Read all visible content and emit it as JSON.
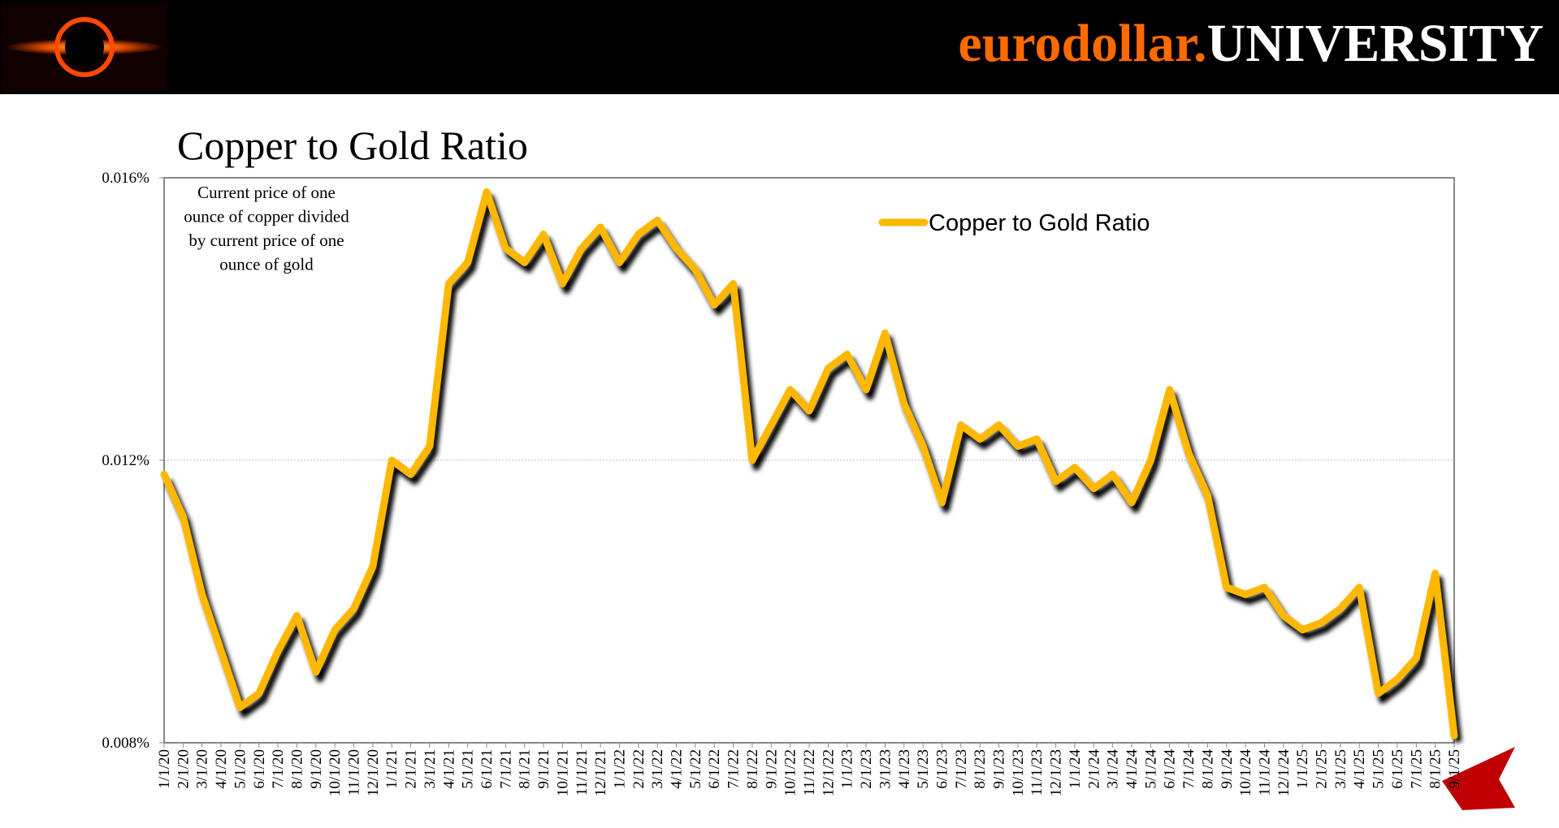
{
  "header": {
    "brand_left": "eurodollar.",
    "brand_right": "UNIVERSITY"
  },
  "chart_data": {
    "type": "line",
    "title": "Copper to Gold Ratio",
    "annotation": [
      "Current price of one",
      "ounce of copper divided",
      "by current price of one",
      "ounce of gold"
    ],
    "categories": [
      "1/1/20",
      "2/1/20",
      "3/1/20",
      "4/1/20",
      "5/1/20",
      "6/1/20",
      "7/1/20",
      "8/1/20",
      "9/1/20",
      "10/1/20",
      "11/1/20",
      "12/1/20",
      "1/1/21",
      "2/1/21",
      "3/1/21",
      "4/1/21",
      "5/1/21",
      "6/1/21",
      "7/1/21",
      "8/1/21",
      "9/1/21",
      "10/1/21",
      "11/1/21",
      "12/1/21",
      "1/1/22",
      "2/1/22",
      "3/1/22",
      "4/1/22",
      "5/1/22",
      "6/1/22",
      "7/1/22",
      "8/1/22",
      "9/1/22",
      "10/1/22",
      "11/1/22",
      "12/1/22",
      "1/1/23",
      "2/1/23",
      "3/1/23",
      "4/1/23",
      "5/1/23",
      "6/1/23",
      "7/1/23",
      "8/1/23",
      "9/1/23",
      "10/1/23",
      "11/1/23",
      "12/1/23",
      "1/1/24",
      "2/1/24",
      "3/1/24",
      "4/1/24",
      "5/1/24",
      "6/1/24",
      "7/1/24",
      "8/1/24",
      "9/1/24",
      "10/1/24",
      "11/1/24",
      "12/1/24",
      "1/1/25",
      "2/1/25",
      "3/1/25",
      "4/1/25",
      "5/1/25",
      "6/1/25",
      "7/1/25",
      "8/1/25",
      "9/1/25"
    ],
    "series": [
      {
        "name": "Copper to Gold Ratio",
        "color": "#ffb800",
        "values": [
          0.0118,
          0.0112,
          0.0101,
          0.0093,
          0.0085,
          0.0087,
          0.0093,
          0.0098,
          0.009,
          0.0096,
          0.0099,
          0.0105,
          0.012,
          0.0118,
          0.0122,
          0.0145,
          0.0148,
          0.0158,
          0.015,
          0.0148,
          0.0152,
          0.0145,
          0.015,
          0.0153,
          0.0148,
          0.0152,
          0.0154,
          0.015,
          0.0147,
          0.0142,
          0.0145,
          0.012,
          0.0125,
          0.013,
          0.0127,
          0.0133,
          0.0135,
          0.013,
          0.0138,
          0.0128,
          0.0122,
          0.0114,
          0.0125,
          0.0123,
          0.0125,
          0.0122,
          0.0123,
          0.0117,
          0.0119,
          0.0116,
          0.0118,
          0.0114,
          0.012,
          0.013,
          0.0121,
          0.0115,
          0.0102,
          0.0101,
          0.0102,
          0.0098,
          0.0096,
          0.0097,
          0.0099,
          0.0102,
          0.0087,
          0.0089,
          0.0092,
          0.0104,
          0.0081
        ]
      }
    ],
    "ylim": [
      0.008,
      0.016
    ],
    "yticks": [
      {
        "value": 0.008,
        "label": "0.008%"
      },
      {
        "value": 0.012,
        "label": "0.012%"
      },
      {
        "value": 0.016,
        "label": "0.016%"
      }
    ],
    "grid": true,
    "legend": "top-right"
  }
}
